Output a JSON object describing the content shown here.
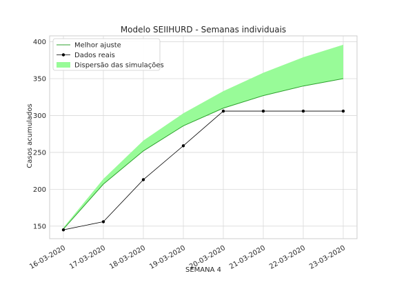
{
  "chart_data": {
    "type": "line",
    "title": "Modelo SEIIHURD - Semanas individuais",
    "xlabel": "SEMANA 4",
    "ylabel": "Casos acumulados",
    "categories": [
      "16-03-2020",
      "17-03-2020",
      "18-03-2020",
      "19-03-2020",
      "20-03-2020",
      "21-03-2020",
      "22-03-2020",
      "23-03-2020"
    ],
    "ylim": [
      133,
      408
    ],
    "yticks": [
      150,
      200,
      250,
      300,
      350,
      400
    ],
    "grid": true,
    "legend_position": "top-left",
    "series": [
      {
        "name": "Melhor ajuste",
        "kind": "line",
        "color": "#2ca02c",
        "values": [
          146,
          207,
          252,
          286,
          310,
          327,
          340,
          350
        ]
      },
      {
        "name": "Dados reais",
        "kind": "line-marker",
        "color": "#000000",
        "values": [
          145,
          156,
          213,
          259,
          306,
          306,
          306,
          306
        ]
      },
      {
        "name": "Dispersão das simulações",
        "kind": "band",
        "color": "#98fb98",
        "lower": [
          146,
          207,
          252,
          286,
          310,
          327,
          340,
          350
        ],
        "upper": [
          148,
          214,
          266,
          303,
          333,
          358,
          379,
          396
        ]
      }
    ]
  }
}
